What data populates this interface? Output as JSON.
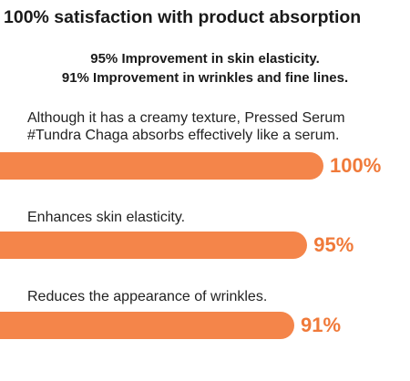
{
  "chart_data": {
    "type": "bar",
    "title": "100% satisfaction with product absorption",
    "subtitles": [
      "95% Improvement in skin elasticity.",
      "91% Improvement in wrinkles and fine lines."
    ],
    "categories": [
      "Although it has a creamy texture, Pressed Serum #Tundra Chaga absorbs effectively like a serum.",
      "Enhances skin elasticity.",
      "Reduces the appearance of wrinkles."
    ],
    "values": [
      100,
      95,
      91
    ],
    "value_labels": [
      "100%",
      "95%",
      "91%"
    ],
    "color": "#f4854a",
    "xlim": [
      0,
      100
    ]
  }
}
